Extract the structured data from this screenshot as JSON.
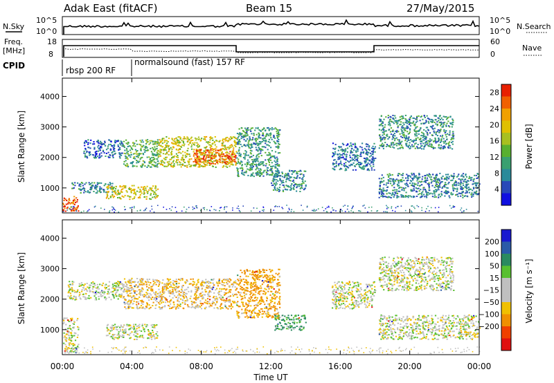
{
  "header": {
    "station": "Adak East (fitACF)",
    "beam": "Beam 15",
    "date": "27/May/2015"
  },
  "summary_panels": {
    "nsky_label": "N.Sky",
    "nsky_ticks": [
      "10^5",
      "10^0"
    ],
    "nsearch_label": "N.Search",
    "freq_label": "Freq.",
    "freq_unit": "[MHz]",
    "freq_ticks": [
      "18",
      "8"
    ],
    "nave_label": "Nave",
    "nave_ticks": [
      "60",
      "0"
    ],
    "cpid_label": "CPID",
    "cpid_segments": [
      {
        "label": "rbsp 200 RF",
        "start_hour": 0,
        "end_hour": 4
      },
      {
        "label": "normalsound (fast) 157 RF",
        "start_hour": 4,
        "end_hour": 24
      }
    ]
  },
  "chart_data": [
    {
      "type": "heatmap",
      "panel": "power",
      "ylabel": "Slant Range [km]",
      "yticks": [
        "1000",
        "2000",
        "3000",
        "4000"
      ],
      "ylim": [
        180,
        4600
      ],
      "xlim": [
        0,
        24
      ],
      "colorbar": {
        "label": "Power [dB]",
        "ticks": [
          "4",
          "8",
          "12",
          "16",
          "20",
          "24",
          "28"
        ],
        "range": [
          0,
          30
        ],
        "colors": [
          "#1010e0",
          "#2848b8",
          "#2a8a9a",
          "#3aa070",
          "#58b030",
          "#a8c020",
          "#e0c000",
          "#f0a000",
          "#f06000",
          "#e82000"
        ]
      },
      "regions": [
        {
          "t0": 0.0,
          "t1": 0.9,
          "r0": 250,
          "r1": 750,
          "level": 26
        },
        {
          "t0": 0.5,
          "t1": 3.0,
          "r0": 850,
          "r1": 1200,
          "level": 8
        },
        {
          "t0": 1.2,
          "t1": 3.5,
          "r0": 2000,
          "r1": 2600,
          "level": 6
        },
        {
          "t0": 2.5,
          "t1": 5.5,
          "r0": 650,
          "r1": 1100,
          "level": 18
        },
        {
          "t0": 3.5,
          "t1": 5.5,
          "r0": 1700,
          "r1": 2600,
          "level": 12
        },
        {
          "t0": 5.5,
          "t1": 10.0,
          "r0": 1700,
          "r1": 2700,
          "level": 18
        },
        {
          "t0": 7.5,
          "t1": 10.0,
          "r0": 1800,
          "r1": 2300,
          "level": 26
        },
        {
          "t0": 10.0,
          "t1": 12.5,
          "r0": 1400,
          "r1": 3000,
          "level": 10
        },
        {
          "t0": 12.0,
          "t1": 14.0,
          "r0": 900,
          "r1": 1600,
          "level": 9
        },
        {
          "t0": 15.5,
          "t1": 18.0,
          "r0": 1600,
          "r1": 2500,
          "level": 7
        },
        {
          "t0": 18.2,
          "t1": 22.5,
          "r0": 2300,
          "r1": 3400,
          "level": 9
        },
        {
          "t0": 18.2,
          "t1": 24.0,
          "r0": 700,
          "r1": 1500,
          "level": 8
        }
      ]
    },
    {
      "type": "heatmap",
      "panel": "velocity",
      "ylabel": "Slant Range [km]",
      "yticks": [
        "1000",
        "2000",
        "3000",
        "4000"
      ],
      "ylim": [
        180,
        4600
      ],
      "xlim": [
        0,
        24
      ],
      "xticks": [
        "00:00",
        "04:00",
        "08:00",
        "12:00",
        "16:00",
        "20:00",
        "00:00"
      ],
      "xlabel": "Time UT",
      "colorbar": {
        "label": "Velocity [m s⁻¹]",
        "ticks": [
          "200",
          "100",
          "50",
          "15",
          "−15",
          "−50",
          "−100",
          "−200"
        ],
        "colors": [
          "#1818d0",
          "#2a5aa8",
          "#2a8a60",
          "#58c030",
          "#c0c0c0",
          "#c0c0c0",
          "#f0c000",
          "#f09000",
          "#f04000",
          "#e01010"
        ]
      },
      "regions": [
        {
          "t0": 0.0,
          "t1": 0.9,
          "r0": 250,
          "r1": 1400,
          "v": 0
        },
        {
          "t0": 0.3,
          "t1": 3.5,
          "r0": 2000,
          "r1": 2600,
          "v": 0
        },
        {
          "t0": 2.5,
          "t1": 5.5,
          "r0": 700,
          "r1": 1200,
          "v": 0
        },
        {
          "t0": 3.5,
          "t1": 10.0,
          "r0": 1700,
          "r1": 2700,
          "v": -20
        },
        {
          "t0": 10.0,
          "t1": 12.5,
          "r0": 1400,
          "r1": 3000,
          "v": -40
        },
        {
          "t0": 12.2,
          "t1": 14.0,
          "r0": 1000,
          "r1": 1500,
          "v": 40
        },
        {
          "t0": 15.5,
          "t1": 18.0,
          "r0": 1700,
          "r1": 2600,
          "v": 0
        },
        {
          "t0": 18.2,
          "t1": 22.5,
          "r0": 2300,
          "r1": 3400,
          "v": 0
        },
        {
          "t0": 18.2,
          "t1": 24.0,
          "r0": 700,
          "r1": 1500,
          "v": 0
        }
      ]
    }
  ]
}
